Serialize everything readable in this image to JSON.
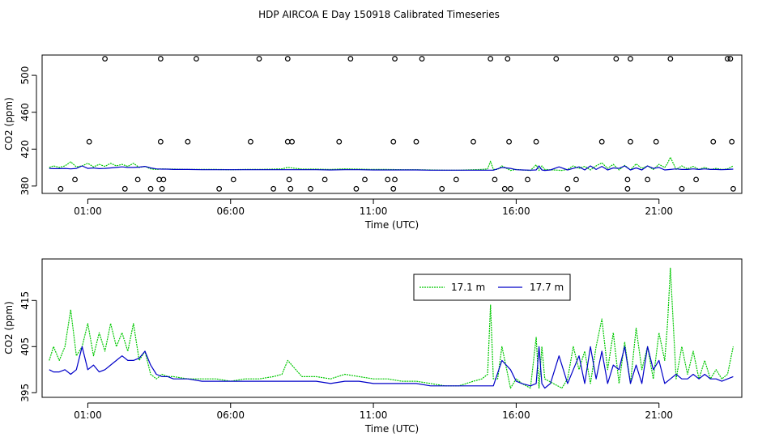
{
  "title": "HDP AIRCOA E  Day 150918  Calibrated Timeseries",
  "chart_data": [
    {
      "type": "line",
      "xlabel": "Time (UTC)",
      "ylabel": "CO2 (ppm)",
      "xlim": [
        -0.6,
        23.9
      ],
      "ylim": [
        372,
        522
      ],
      "xticks": [
        1,
        6,
        11,
        16,
        21
      ],
      "xtick_labels": [
        "01:00",
        "06:00",
        "11:00",
        "16:00",
        "21:00"
      ],
      "yticks": [
        380,
        420,
        460,
        500
      ],
      "ytick_labels": [
        "380",
        "420",
        "460",
        "500"
      ],
      "calibration_points": {
        "x": [
          0.05,
          0.55,
          1.05,
          1.6,
          2.3,
          2.75,
          3.2,
          3.5,
          3.55,
          3.55,
          3.6,
          3.65,
          4.5,
          4.8,
          5.6,
          6.1,
          6.7,
          7.0,
          7.5,
          8.0,
          8.0,
          8.05,
          8.1,
          8.15,
          8.8,
          9.3,
          9.8,
          10.2,
          10.4,
          10.7,
          11.5,
          11.7,
          11.7,
          11.75,
          11.75,
          12.5,
          12.7,
          13.4,
          13.9,
          14.5,
          15.1,
          15.25,
          15.6,
          15.7,
          15.75,
          15.8,
          16.4,
          16.7,
          17.4,
          17.8,
          18.1,
          19.0,
          19.5,
          19.9,
          19.9,
          20.0,
          20.0,
          20.6,
          20.9,
          21.4,
          21.8,
          22.3,
          22.9,
          23.4,
          23.5,
          23.55,
          23.6
        ],
        "y": [
          377,
          387,
          428,
          518,
          377,
          387,
          377,
          387,
          428,
          518,
          377,
          387,
          428,
          518,
          377,
          387,
          428,
          518,
          377,
          518,
          428,
          387,
          377,
          428,
          377,
          387,
          428,
          518,
          377,
          387,
          387,
          377,
          428,
          518,
          387,
          428,
          518,
          377,
          387,
          428,
          518,
          387,
          377,
          518,
          428,
          377,
          387,
          428,
          518,
          377,
          387,
          428,
          518,
          377,
          387,
          428,
          518,
          387,
          428,
          518,
          377,
          387,
          428,
          518,
          518,
          428,
          377
        ]
      }
    },
    {
      "type": "line",
      "xlabel": "Time (UTC)",
      "ylabel": "CO2 (ppm)",
      "xlim": [
        -0.6,
        23.9
      ],
      "ylim": [
        394,
        424
      ],
      "xticks": [
        1,
        6,
        11,
        16,
        21
      ],
      "xtick_labels": [
        "01:00",
        "06:00",
        "11:00",
        "16:00",
        "21:00"
      ],
      "yticks": [
        395,
        405,
        415
      ],
      "ytick_labels": [
        "395",
        "405",
        "415"
      ],
      "legend": {
        "position": "top-right"
      }
    }
  ],
  "series": [
    {
      "name": "17.1 m",
      "color": "#00c800",
      "x": [
        -0.35,
        -0.2,
        0.0,
        0.2,
        0.4,
        0.6,
        0.8,
        1.0,
        1.2,
        1.4,
        1.6,
        1.8,
        2.0,
        2.2,
        2.4,
        2.6,
        2.8,
        3.0,
        3.2,
        3.4,
        3.6,
        3.8,
        4.0,
        4.5,
        5.0,
        5.5,
        6.0,
        6.5,
        7.0,
        7.5,
        7.8,
        8.0,
        8.5,
        9.0,
        9.5,
        10.0,
        10.5,
        11.0,
        11.5,
        12.0,
        12.5,
        13.0,
        13.5,
        14.0,
        14.5,
        14.8,
        15.0,
        15.1,
        15.2,
        15.35,
        15.5,
        15.8,
        16.0,
        16.2,
        16.5,
        16.7,
        16.8,
        16.9,
        17.0,
        17.3,
        17.6,
        17.8,
        18.0,
        18.2,
        18.4,
        18.6,
        18.8,
        19.0,
        19.2,
        19.4,
        19.6,
        19.8,
        20.0,
        20.2,
        20.4,
        20.6,
        20.8,
        21.0,
        21.2,
        21.3,
        21.4,
        21.6,
        21.8,
        22.0,
        22.2,
        22.4,
        22.6,
        22.8,
        23.0,
        23.2,
        23.4,
        23.6
      ],
      "y": [
        402,
        405,
        402,
        405,
        413,
        403,
        405,
        410,
        403,
        408,
        404,
        410,
        405,
        408,
        404,
        410,
        402,
        404,
        399,
        398,
        399,
        398.5,
        398.5,
        398,
        398,
        398,
        397.5,
        398,
        398,
        398.5,
        399,
        402,
        398.5,
        398.5,
        398,
        399,
        398.5,
        398,
        398,
        397.5,
        397.5,
        397,
        396.5,
        396.5,
        397.5,
        398,
        399,
        414,
        398,
        398,
        405,
        396,
        398,
        397,
        396,
        407,
        396,
        405,
        398,
        397,
        396,
        398,
        405,
        400,
        404,
        397,
        405,
        411,
        400,
        408,
        397,
        406,
        397,
        409,
        400,
        405,
        398,
        408,
        402,
        410,
        422,
        398,
        405,
        399,
        404,
        398,
        402,
        398,
        400,
        398,
        399,
        405
      ]
    },
    {
      "name": "17.7 m",
      "color": "#0000c8",
      "x": [
        -0.35,
        -0.2,
        0.0,
        0.2,
        0.4,
        0.6,
        0.8,
        1.0,
        1.2,
        1.4,
        1.6,
        1.8,
        2.0,
        2.2,
        2.4,
        2.6,
        2.8,
        3.0,
        3.2,
        3.4,
        3.6,
        3.8,
        4.0,
        4.5,
        5.0,
        5.5,
        6.0,
        6.5,
        7.0,
        7.5,
        8.0,
        8.5,
        9.0,
        9.5,
        10.0,
        10.5,
        11.0,
        11.5,
        12.0,
        12.5,
        13.0,
        13.5,
        14.0,
        14.5,
        15.0,
        15.2,
        15.5,
        15.8,
        16.0,
        16.2,
        16.5,
        16.7,
        16.8,
        16.9,
        17.0,
        17.2,
        17.5,
        17.8,
        18.0,
        18.2,
        18.4,
        18.6,
        18.8,
        19.0,
        19.2,
        19.4,
        19.6,
        19.8,
        20.0,
        20.2,
        20.4,
        20.6,
        20.8,
        21.0,
        21.2,
        21.4,
        21.6,
        21.8,
        22.0,
        22.2,
        22.4,
        22.6,
        22.8,
        23.0,
        23.2,
        23.4,
        23.6
      ],
      "y": [
        400,
        399.5,
        399.5,
        400,
        399,
        400,
        405,
        400,
        401,
        399.5,
        400,
        401,
        402,
        403,
        402,
        402,
        402.5,
        404,
        401,
        399,
        398.5,
        398.5,
        398,
        398,
        397.5,
        397.5,
        397.5,
        397.5,
        397.5,
        397.5,
        397.5,
        397.5,
        397.5,
        397,
        397.5,
        397.5,
        397,
        397,
        397,
        397,
        396.5,
        396.5,
        396.5,
        396.5,
        396.5,
        396.5,
        402,
        400,
        397.5,
        397,
        396.5,
        397,
        405,
        397,
        396,
        397,
        403,
        397,
        400,
        403,
        397,
        405,
        398,
        404,
        397,
        401,
        400,
        405,
        397,
        401,
        397,
        405,
        400,
        402,
        397,
        398,
        399,
        398,
        398,
        399,
        398,
        399,
        398,
        398,
        397.5,
        398,
        398.5
      ]
    }
  ]
}
